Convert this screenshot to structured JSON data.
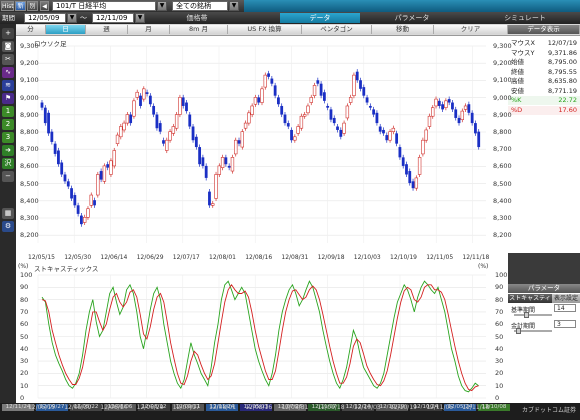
{
  "topbar": {
    "btn1": "Hist",
    "btn2": "新",
    "btn3": "別",
    "code": "101/T 日経平均",
    "all_stocks": "全ての銘柄",
    "indicator": "価格帯",
    "period_label": "期間",
    "start_date": "12/05/09",
    "end_date": "12/11/09",
    "tilde": "〜"
  },
  "sections": [
    "指標名",
    "データ",
    "パラメータ",
    "シミュレート"
  ],
  "toolbar": [
    "日",
    "週",
    "月",
    "分",
    "8m 月",
    "US FX 換算",
    "ペンタゴン",
    "移動",
    "クリア"
  ],
  "toolbar_active": "日",
  "left_icons": [
    "plus",
    "camera",
    "tools",
    "chart-red",
    "chart-blue",
    "flag",
    "1",
    "2",
    "3",
    "arrow",
    "沢",
    "minus",
    "gear"
  ],
  "chart": {
    "label": "ロウソク足",
    "y_ticks": [
      "9,300",
      "9,200",
      "9,100",
      "9,000",
      "8,900",
      "8,800",
      "8,700",
      "8,600",
      "8,500",
      "8,400",
      "8,300",
      "8,200"
    ],
    "x_ticks": [
      "12/05/15",
      "12/05/30",
      "12/06/14",
      "12/06/29",
      "12/07/17",
      "12/08/01",
      "12/08/16",
      "12/08/31",
      "12/09/18",
      "12/10/03",
      "12/10/19",
      "12/11/05",
      "12/11/18"
    ]
  },
  "stoch": {
    "label": "ストキャスティックス",
    "pct": "(%)",
    "y_ticks": [
      "100",
      "90",
      "80",
      "70",
      "60",
      "50",
      "40",
      "30",
      "20",
      "10",
      "0"
    ]
  },
  "bottom_dates": [
    "12/11/24",
    "12/09/27",
    "12/05/22",
    "12/08/06",
    "12/08/22",
    "12/09/11",
    "12/11/24",
    "12/05/13",
    "12/07/26",
    "12/11/07",
    "12/12/24",
    "12/10/19",
    "12/10/24",
    "12/05/24",
    "12/10/08"
  ],
  "bottom_brand": "カブドットコム証券",
  "rpanel1": {
    "header": "データ表示",
    "rows": [
      {
        "k": "マウスX",
        "v": "12/07/19"
      },
      {
        "k": "マウスY",
        "v": "9,371.86"
      },
      {
        "k": "始値",
        "v": "8,795.00"
      },
      {
        "k": "終値",
        "v": "8,795.55"
      },
      {
        "k": "高値",
        "v": "8,635.80"
      },
      {
        "k": "安値",
        "v": "8,771.19"
      },
      {
        "k": "%K",
        "v": "22.72"
      },
      {
        "k": "%D",
        "v": "17.60"
      }
    ]
  },
  "rpanel2": {
    "header": "パラメータ",
    "tab1": "ストキャスティ",
    "tab2": "表示設定",
    "params": [
      {
        "k": "基準期間",
        "v": "14"
      },
      {
        "k": "金計期間",
        "v": "3"
      }
    ]
  },
  "colors": {
    "up": "#d0312d",
    "down": "#1a2fc4",
    "k_line": "#2aa41f",
    "d_line": "#d42020"
  },
  "chart_data": {
    "type": "candlestick",
    "ylim": [
      8200,
      9350
    ],
    "candles": [
      [
        9020,
        8990
      ],
      [
        8990,
        8900
      ],
      [
        8960,
        8840
      ],
      [
        8850,
        8790
      ],
      [
        8780,
        8720
      ],
      [
        8740,
        8660
      ],
      [
        8670,
        8600
      ],
      [
        8600,
        8560
      ],
      [
        8560,
        8530
      ],
      [
        8520,
        8460
      ],
      [
        8480,
        8420
      ],
      [
        8420,
        8370
      ],
      [
        8360,
        8310
      ],
      [
        8320,
        8350
      ],
      [
        8350,
        8400
      ],
      [
        8420,
        8480
      ],
      [
        8450,
        8420
      ],
      [
        8480,
        8600
      ],
      [
        8620,
        8570
      ],
      [
        8560,
        8650
      ],
      [
        8660,
        8640
      ],
      [
        8600,
        8680
      ],
      [
        8650,
        8740
      ],
      [
        8780,
        8830
      ],
      [
        8820,
        8880
      ],
      [
        8860,
        8900
      ],
      [
        8900,
        8950
      ],
      [
        8950,
        8900
      ],
      [
        8940,
        9030
      ],
      [
        9050,
        9080
      ],
      [
        9060,
        9000
      ],
      [
        9040,
        9100
      ],
      [
        9080,
        9070
      ],
      [
        9060,
        9010
      ],
      [
        9000,
        8950
      ],
      [
        8950,
        8870
      ],
      [
        8900,
        8850
      ],
      [
        8800,
        8780
      ],
      [
        8740,
        8800
      ],
      [
        8800,
        8850
      ],
      [
        8840,
        8880
      ],
      [
        8870,
        8950
      ],
      [
        8950,
        9050
      ],
      [
        9050,
        9000
      ],
      [
        9020,
        8970
      ],
      [
        8950,
        8880
      ],
      [
        8880,
        8800
      ],
      [
        8820,
        8760
      ],
      [
        8760,
        8660
      ],
      [
        8700,
        8650
      ],
      [
        8650,
        8580
      ],
      [
        8500,
        8420
      ],
      [
        8420,
        8430
      ],
      [
        8460,
        8600
      ],
      [
        8600,
        8650
      ],
      [
        8640,
        8700
      ],
      [
        8700,
        8660
      ],
      [
        8650,
        8640
      ],
      [
        8620,
        8700
      ],
      [
        8720,
        8800
      ],
      [
        8800,
        8780
      ],
      [
        8760,
        8850
      ],
      [
        8870,
        8900
      ],
      [
        8900,
        8960
      ],
      [
        8950,
        9000
      ],
      [
        9010,
        9050
      ],
      [
        9050,
        9020
      ],
      [
        9020,
        9100
      ],
      [
        9110,
        9180
      ],
      [
        9190,
        9170
      ],
      [
        9160,
        9130
      ],
      [
        9120,
        9060
      ],
      [
        9050,
        9010
      ],
      [
        9000,
        8950
      ],
      [
        8950,
        8900
      ],
      [
        8900,
        8880
      ],
      [
        8860,
        8800
      ],
      [
        8800,
        8820
      ],
      [
        8840,
        8880
      ],
      [
        8870,
        8940
      ],
      [
        8940,
        8950
      ],
      [
        8960,
        9000
      ],
      [
        9020,
        9050
      ],
      [
        9060,
        9120
      ],
      [
        9150,
        9130
      ],
      [
        9130,
        9060
      ],
      [
        9080,
        9030
      ],
      [
        9000,
        8990
      ],
      [
        8980,
        8920
      ],
      [
        8930,
        8900
      ],
      [
        8880,
        8860
      ],
      [
        8860,
        8820
      ],
      [
        8840,
        8900
      ],
      [
        8930,
        9000
      ],
      [
        9020,
        9050
      ],
      [
        9060,
        9180
      ],
      [
        9200,
        9150
      ],
      [
        9150,
        9100
      ],
      [
        9110,
        9060
      ],
      [
        9050,
        9020
      ],
      [
        9000,
        8990
      ],
      [
        8980,
        8950
      ],
      [
        8960,
        8900
      ],
      [
        8880,
        8850
      ],
      [
        8860,
        8840
      ],
      [
        8830,
        8800
      ],
      [
        8800,
        8850
      ],
      [
        8850,
        8870
      ],
      [
        8840,
        8780
      ],
      [
        8760,
        8700
      ],
      [
        8700,
        8650
      ],
      [
        8660,
        8600
      ],
      [
        8620,
        8550
      ],
      [
        8560,
        8520
      ],
      [
        8520,
        8580
      ],
      [
        8600,
        8700
      ],
      [
        8720,
        8800
      ],
      [
        8800,
        8860
      ],
      [
        8880,
        8940
      ],
      [
        8940,
        8990
      ],
      [
        9000,
        9040
      ],
      [
        9030,
        9000
      ],
      [
        9010,
        8980
      ],
      [
        8990,
        9030
      ],
      [
        9040,
        9020
      ],
      [
        9020,
        8980
      ],
      [
        8980,
        8930
      ],
      [
        8930,
        8900
      ],
      [
        8920,
        8970
      ],
      [
        8980,
        9000
      ],
      [
        9010,
        8960
      ],
      [
        8960,
        8900
      ],
      [
        8900,
        8840
      ],
      [
        8850,
        8760
      ]
    ],
    "stoch_k": [
      82,
      78,
      60,
      45,
      35,
      28,
      22,
      15,
      10,
      8,
      12,
      20,
      35,
      55,
      70,
      80,
      62,
      50,
      55,
      70,
      85,
      90,
      78,
      68,
      74,
      88,
      92,
      85,
      70,
      50,
      40,
      55,
      72,
      85,
      90,
      80,
      60,
      45,
      30,
      20,
      12,
      8,
      15,
      30,
      45,
      35,
      28,
      20,
      15,
      10,
      25,
      45,
      60,
      80,
      92,
      95,
      88,
      80,
      85,
      90,
      85,
      70,
      55,
      40,
      30,
      22,
      15,
      10,
      20,
      35,
      55,
      70,
      80,
      88,
      92,
      85,
      75,
      80,
      88,
      95,
      90,
      80,
      70,
      55,
      42,
      30,
      20,
      12,
      8,
      15,
      25,
      40,
      55,
      48,
      35,
      25,
      20,
      15,
      10,
      8,
      12,
      20,
      35,
      50,
      65,
      78,
      85,
      92,
      88,
      80,
      70,
      82,
      90,
      95,
      92,
      88,
      85,
      90,
      80,
      70,
      55,
      40,
      30,
      18,
      10,
      6,
      5,
      8,
      12,
      10
    ],
    "stoch_d": [
      80,
      79,
      70,
      55,
      45,
      35,
      27,
      20,
      15,
      11,
      11,
      16,
      25,
      40,
      55,
      70,
      70,
      62,
      55,
      60,
      72,
      82,
      85,
      78,
      74,
      78,
      86,
      88,
      82,
      68,
      52,
      48,
      58,
      72,
      82,
      85,
      78,
      62,
      45,
      32,
      20,
      12,
      11,
      18,
      30,
      38,
      35,
      27,
      20,
      15,
      18,
      28,
      45,
      62,
      78,
      88,
      92,
      88,
      85,
      85,
      87,
      82,
      70,
      55,
      42,
      32,
      22,
      15,
      15,
      22,
      38,
      55,
      70,
      80,
      87,
      88,
      84,
      80,
      82,
      88,
      91,
      88,
      80,
      68,
      55,
      42,
      30,
      20,
      12,
      12,
      17,
      28,
      42,
      48,
      45,
      36,
      26,
      20,
      15,
      11,
      10,
      14,
      22,
      35,
      50,
      65,
      78,
      87,
      90,
      88,
      80,
      78,
      82,
      90,
      92,
      92,
      88,
      88,
      86,
      80,
      68,
      55,
      42,
      30,
      20,
      12,
      7,
      6,
      9,
      10
    ]
  }
}
